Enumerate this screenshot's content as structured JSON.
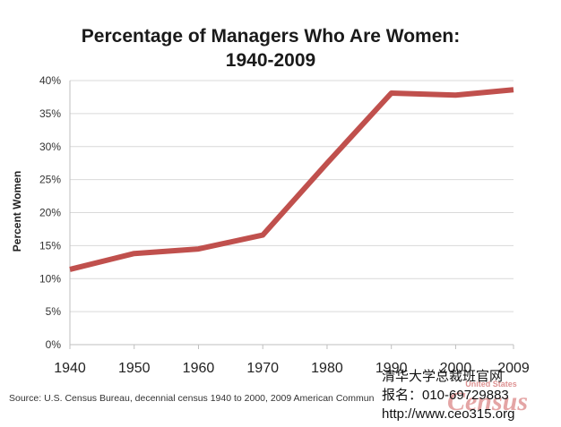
{
  "chart_data": {
    "type": "line",
    "title_line1": "Percentage of Managers Who Are Women:",
    "title_line2": "1940-2009",
    "ylabel": "Percent Women",
    "xlabel": "",
    "x": [
      1940,
      1950,
      1960,
      1970,
      1980,
      1990,
      2000,
      2009
    ],
    "x_tick_labels": [
      "1940",
      "1950",
      "1960",
      "1970",
      "1980",
      "1990",
      "2000",
      "2009"
    ],
    "series": [
      {
        "values": [
          11.4,
          13.8,
          14.5,
          16.6,
          27.5,
          38.1,
          37.8,
          38.6
        ]
      }
    ],
    "ylim": [
      0,
      40
    ],
    "y_tick_labels": [
      "0%",
      "5%",
      "10%",
      "15%",
      "20%",
      "25%",
      "30%",
      "35%",
      "40%"
    ],
    "grid": true,
    "legend": "none",
    "line_color": "#c0504d"
  },
  "footer": {
    "source": "Source: U.S. Census Bureau, decennial census 1940 to 2000, 2009 American Commun"
  },
  "watermark": {
    "line1": "清华大学总裁班官网",
    "line2": "报名：010-69729883",
    "line3": "http://www.ceo315.org",
    "logo_small": "United States",
    "logo_big": "Census"
  }
}
